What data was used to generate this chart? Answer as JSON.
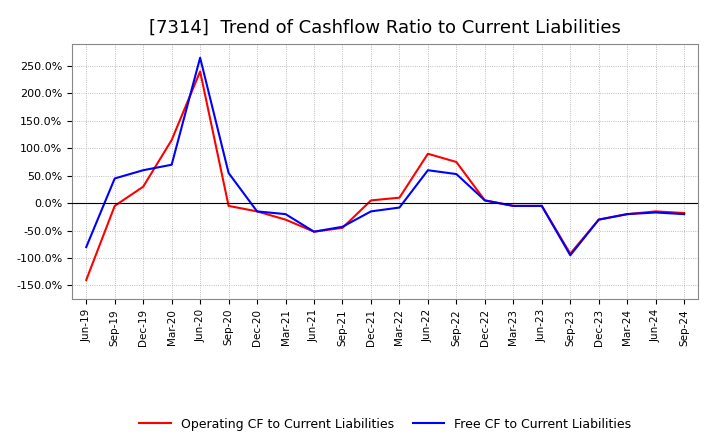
{
  "title": "[7314]  Trend of Cashflow Ratio to Current Liabilities",
  "x_labels": [
    "Jun-19",
    "Sep-19",
    "Dec-19",
    "Mar-20",
    "Jun-20",
    "Sep-20",
    "Dec-20",
    "Mar-21",
    "Jun-21",
    "Sep-21",
    "Dec-21",
    "Mar-22",
    "Jun-22",
    "Sep-22",
    "Dec-22",
    "Mar-23",
    "Jun-23",
    "Sep-23",
    "Dec-23",
    "Mar-24",
    "Jun-24",
    "Sep-24"
  ],
  "operating_cf": [
    -140,
    -5,
    30,
    115,
    240,
    -5,
    -15,
    -30,
    -52,
    -45,
    5,
    10,
    90,
    75,
    5,
    -5,
    -5,
    -92,
    -30,
    -20,
    -15,
    -18
  ],
  "free_cf": [
    -80,
    45,
    60,
    70,
    265,
    55,
    -15,
    -20,
    -52,
    -43,
    -15,
    -8,
    60,
    53,
    5,
    -5,
    -5,
    -95,
    -30,
    -20,
    -17,
    -20
  ],
  "operating_color": "#ff0000",
  "free_color": "#0000ff",
  "ylim": [
    -175,
    290
  ],
  "yticks": [
    -150,
    -100,
    -50,
    0,
    50,
    100,
    150,
    200,
    250
  ],
  "background_color": "#ffffff",
  "grid_color": "#aaaaaa",
  "title_fontsize": 13
}
